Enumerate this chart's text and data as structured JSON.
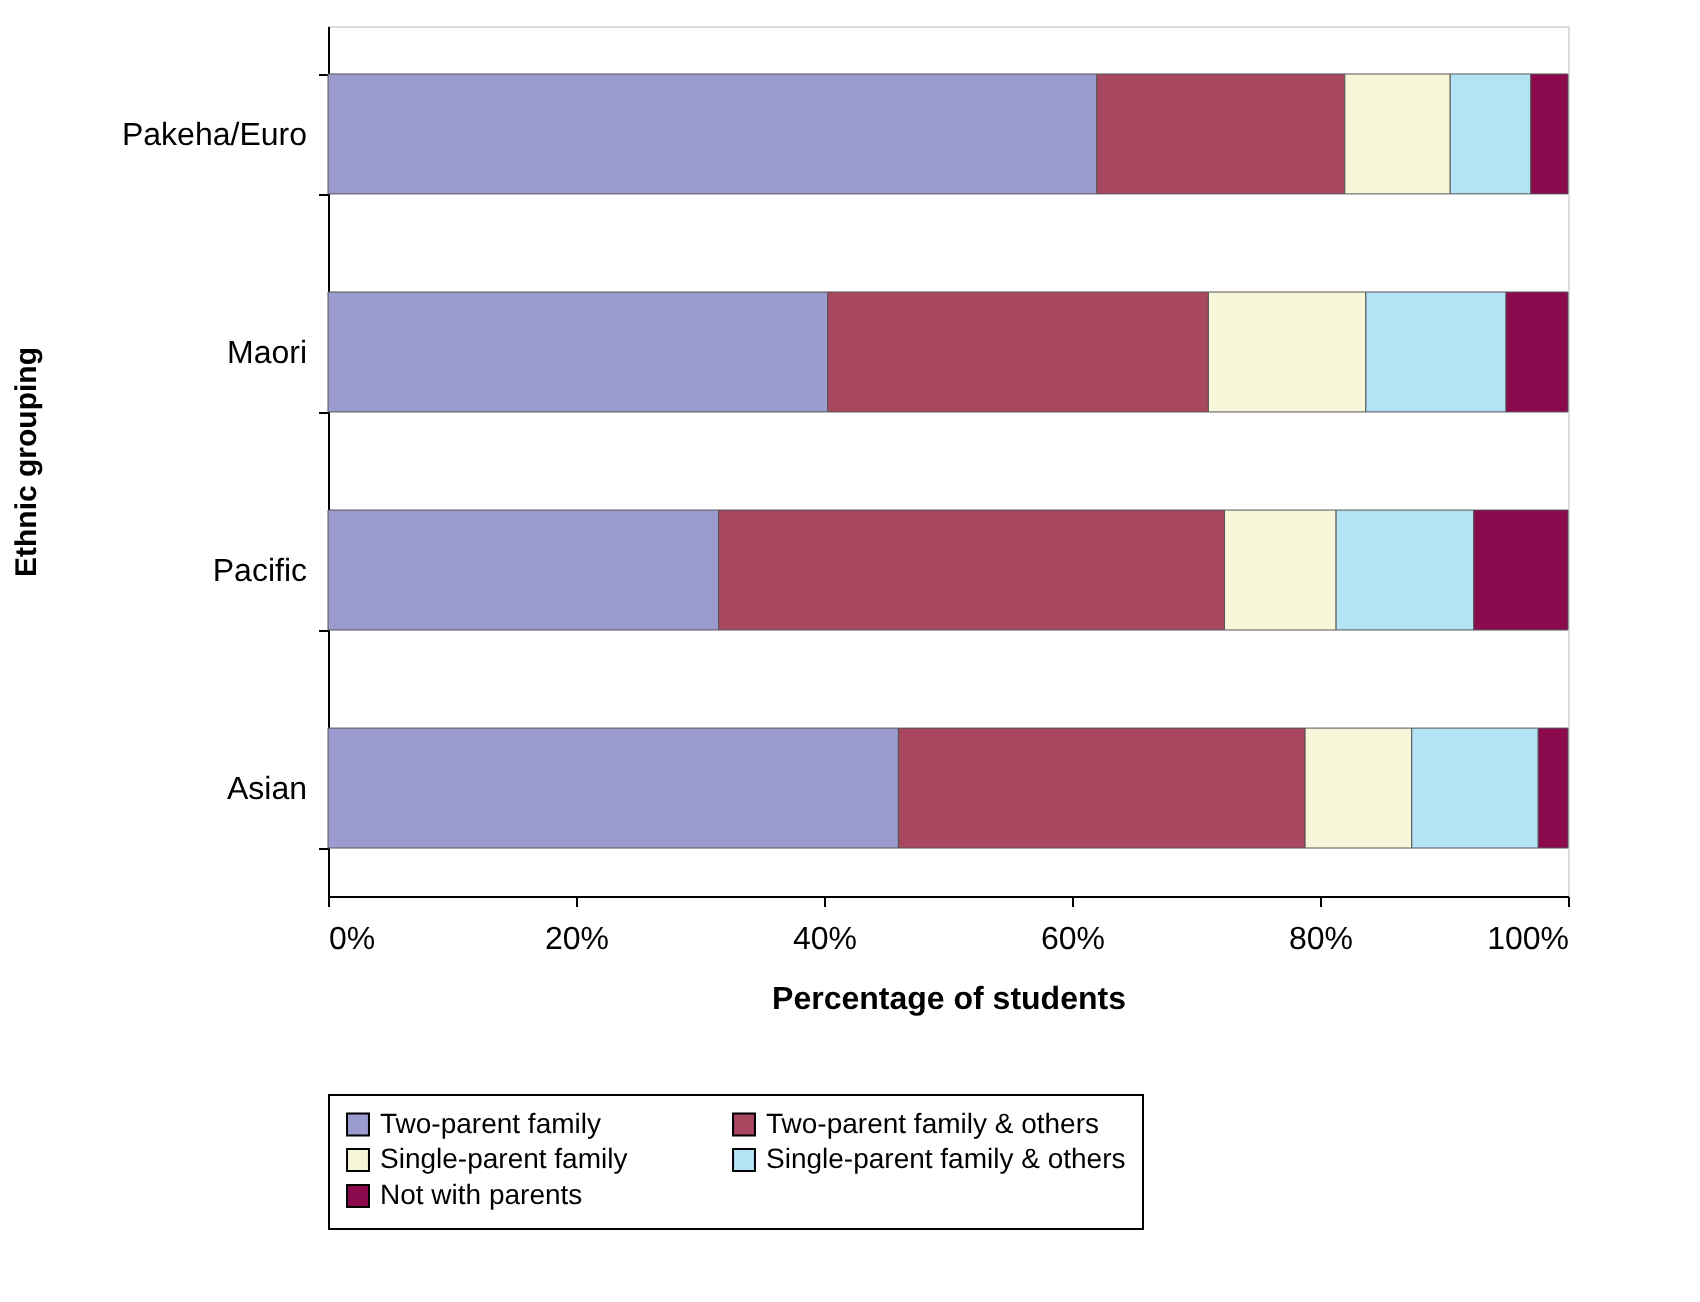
{
  "chart_data": {
    "type": "bar",
    "orientation": "horizontal",
    "stacked": true,
    "xlabel": "Percentage of students",
    "ylabel": "Ethnic grouping",
    "categories": [
      "Pakeha/Euro",
      "Maori",
      "Pacific",
      "Asian"
    ],
    "series": [
      {
        "name": "Two-parent family",
        "color": "#9b9bd0",
        "values": [
          62,
          40.3,
          31.5,
          46
        ]
      },
      {
        "name": "Two-parent family & others",
        "color": "#a8475f",
        "values": [
          20,
          30.7,
          40.8,
          32.8
        ]
      },
      {
        "name": "Single-parent family",
        "color": "#f8f6d8",
        "values": [
          8.5,
          12.7,
          9,
          8.6
        ]
      },
      {
        "name": "Single-parent family & others",
        "color": "#b3e3f5",
        "values": [
          6.5,
          11.3,
          11.1,
          10.2
        ]
      },
      {
        "name": "Not with parents",
        "color": "#8b0a4d",
        "values": [
          3,
          5,
          7.6,
          2.4
        ]
      }
    ],
    "xlim": [
      0,
      100
    ],
    "xticks": [
      {
        "value": 0,
        "label": "0%"
      },
      {
        "value": 20,
        "label": "20%"
      },
      {
        "value": 40,
        "label": "40%"
      },
      {
        "value": 60,
        "label": "60%"
      },
      {
        "value": 80,
        "label": "80%"
      },
      {
        "value": 100,
        "label": "100%"
      }
    ],
    "grid": false,
    "legend": "bottom"
  }
}
